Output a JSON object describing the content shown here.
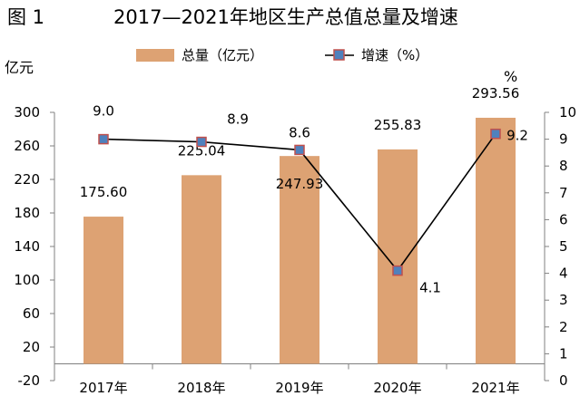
{
  "figure_label": "图 1",
  "title": "2017—2021年地区生产总值总量及增速",
  "left_unit": "亿元",
  "right_unit": "%",
  "legend": {
    "bar_label": "总量（亿元）",
    "line_label": "增速（%）"
  },
  "colors": {
    "bar": "#dda273",
    "line": "#000000",
    "marker_fill": "#4f81bd",
    "marker_edge": "#c0504d",
    "axis": "#808080"
  },
  "chart_data": {
    "type": "bar",
    "title": "2017—2021年地区生产总值总量及增速",
    "categories": [
      "2017年",
      "2018年",
      "2019年",
      "2020年",
      "2021年"
    ],
    "series": [
      {
        "name": "总量（亿元）",
        "type": "bar",
        "axis": "left",
        "values": [
          175.6,
          225.04,
          247.93,
          255.83,
          293.56
        ],
        "labels": [
          "175.60",
          "225.04",
          "247.93",
          "255.83",
          "293.56"
        ]
      },
      {
        "name": "增速（%）",
        "type": "line",
        "axis": "right",
        "values": [
          9.0,
          8.9,
          8.6,
          4.1,
          9.2
        ],
        "labels": [
          "9.0",
          "8.9",
          "8.6",
          "4.1",
          "9.2"
        ]
      }
    ],
    "ylim": [
      -20,
      300
    ],
    "yticks": [
      "-20",
      "20",
      "60",
      "100",
      "140",
      "180",
      "220",
      "260",
      "300"
    ],
    "ylabel": "亿元",
    "y2lim": [
      0,
      10
    ],
    "y2ticks": [
      "0",
      "1",
      "2",
      "3",
      "4",
      "5",
      "6",
      "7",
      "8",
      "9",
      "10"
    ],
    "y2label": "%",
    "legend_position": "top",
    "grid": false
  }
}
